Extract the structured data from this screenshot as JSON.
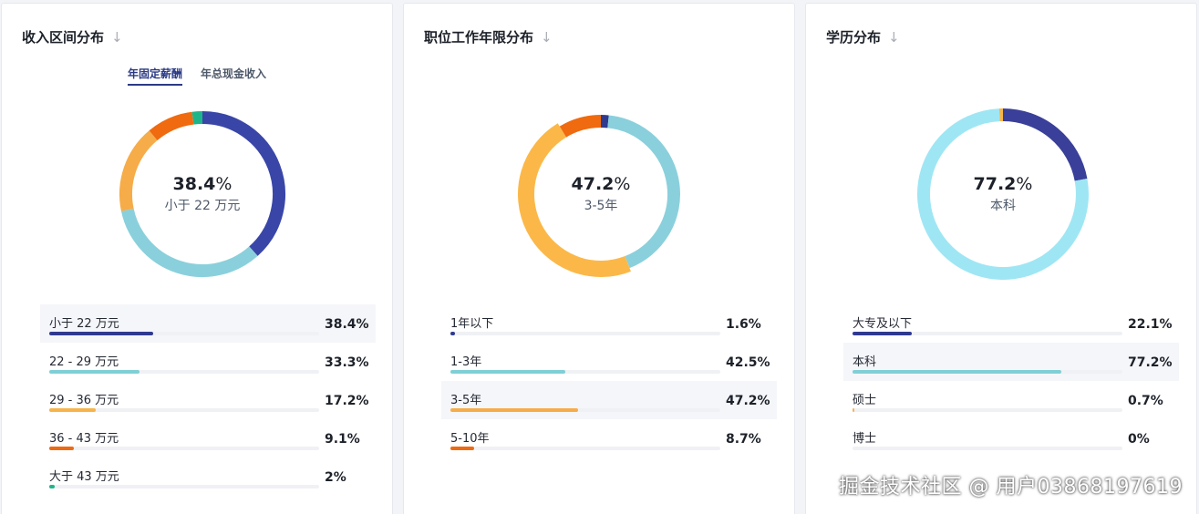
{
  "cards": [
    {
      "title": "收入区间分布",
      "arrow": "↓",
      "tabs": [
        {
          "label": "年固定薪酬",
          "active": true
        },
        {
          "label": "年总现金收入",
          "active": false
        }
      ],
      "center": {
        "value": "38.4",
        "suffix": "%",
        "label": "小于 22 万元"
      },
      "highlight_index": 0
    },
    {
      "title": "职位工作年限分布",
      "arrow": "↓",
      "center": {
        "value": "47.2",
        "suffix": "%",
        "label": "3-5年"
      },
      "highlight_index": 2
    },
    {
      "title": "学历分布",
      "arrow": "↓",
      "center": {
        "value": "77.2",
        "suffix": "%",
        "label": "本科"
      },
      "highlight_index": 1
    }
  ],
  "chart_data": [
    {
      "type": "pie",
      "title": "收入区间分布",
      "categories": [
        "小于 22 万元",
        "22 - 29 万元",
        "29 - 36 万元",
        "36 - 43 万元",
        "大于 43 万元"
      ],
      "values": [
        38.4,
        33.3,
        17.2,
        9.1,
        2
      ],
      "value_labels": [
        "38.4%",
        "33.3%",
        "17.2%",
        "9.1%",
        "2%"
      ],
      "colors": [
        "#3946a8",
        "#8ad0dc",
        "#f6ac48",
        "#f06a0f",
        "#1fb58a"
      ],
      "bar_colors": [
        "#2f3a8f",
        "#7fcfd6",
        "#f6b44a",
        "#ee6a12",
        "#1fb58a"
      ]
    },
    {
      "type": "pie",
      "title": "职位工作年限分布",
      "categories": [
        "1年以下",
        "1-3年",
        "3-5年",
        "5-10年"
      ],
      "values": [
        1.6,
        42.5,
        47.2,
        8.7
      ],
      "value_labels": [
        "1.6%",
        "42.5%",
        "47.2%",
        "8.7%"
      ],
      "colors": [
        "#2f3a8f",
        "#8ad0dc",
        "#fbb848",
        "#f06a0f"
      ],
      "bar_colors": [
        "#2f3a8f",
        "#7fcfd6",
        "#f6ac48",
        "#ee6a12"
      ]
    },
    {
      "type": "pie",
      "title": "学历分布",
      "categories": [
        "大专及以下",
        "本科",
        "硕士",
        "博士"
      ],
      "values": [
        22.1,
        77.2,
        0.7,
        0
      ],
      "value_labels": [
        "22.1%",
        "77.2%",
        "0.7%",
        "0%"
      ],
      "colors": [
        "#3a3f99",
        "#9fe6f4",
        "#f6b44a",
        "#ee6a12"
      ],
      "bar_colors": [
        "#2f3a8f",
        "#7fcfd6",
        "#f6b44a",
        "#ee6a12"
      ]
    }
  ],
  "watermark": "掘金技术社区 @ 用户03868197619"
}
